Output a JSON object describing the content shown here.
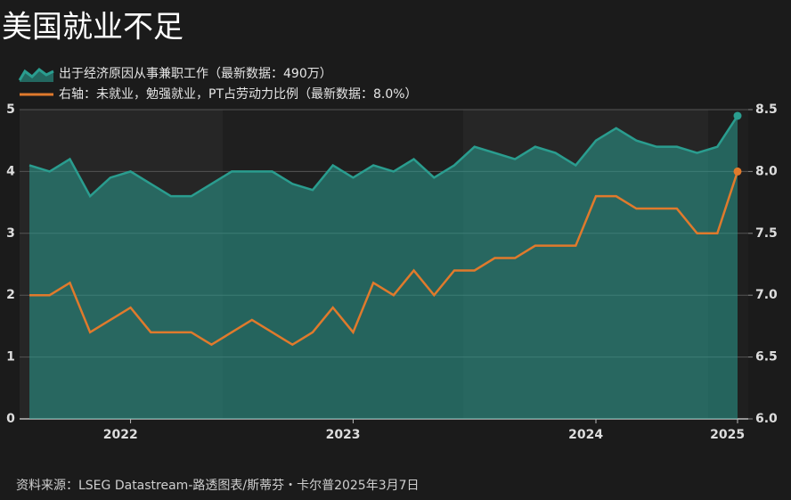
{
  "chart_data": {
    "type": "line",
    "title": "美国就业不足",
    "source": "资料来源：LSEG Datastream-路透图表/斯蒂芬・卡尔普2025年3月7日",
    "categories": [
      null,
      null,
      null,
      null,
      null,
      "2022",
      null,
      null,
      null,
      null,
      null,
      null,
      null,
      null,
      null,
      null,
      "2023",
      null,
      null,
      null,
      null,
      null,
      null,
      null,
      null,
      null,
      null,
      null,
      "2024",
      null,
      null,
      null,
      null,
      null,
      null,
      "2025"
    ],
    "series": [
      {
        "name": "出于经济原因从事兼职工作（最新数据：490万）",
        "color": "#2a9d8f",
        "kind": "area",
        "axis": "y",
        "values": [
          4.1,
          4.0,
          4.2,
          3.6,
          3.9,
          4.0,
          3.8,
          3.6,
          3.6,
          3.8,
          4.0,
          4.0,
          4.0,
          3.8,
          3.7,
          4.1,
          3.9,
          4.1,
          4.0,
          4.2,
          3.9,
          4.1,
          4.4,
          4.3,
          4.2,
          4.4,
          4.3,
          4.1,
          4.5,
          4.7,
          4.5,
          4.4,
          4.4,
          4.3,
          4.4,
          4.9
        ]
      },
      {
        "name": "右轴：未就业，勉强就业，PT占劳动力比例（最新数据：8.0%）",
        "color": "#e07a2c",
        "kind": "line",
        "axis": "y2",
        "values": [
          7.0,
          7.0,
          7.1,
          6.7,
          6.8,
          6.9,
          6.7,
          6.7,
          6.7,
          6.6,
          6.7,
          6.8,
          6.7,
          6.6,
          6.7,
          6.9,
          6.7,
          7.1,
          7.0,
          7.2,
          7.0,
          7.2,
          7.2,
          7.3,
          7.3,
          7.4,
          7.4,
          7.4,
          7.8,
          7.8,
          7.7,
          7.7,
          7.7,
          7.5,
          7.5,
          8.0
        ]
      }
    ],
    "ylim": [
      0,
      5
    ],
    "yticks": [
      0,
      1,
      2,
      3,
      4,
      5
    ],
    "y2lim": [
      6.0,
      8.5
    ],
    "y2ticks": [
      {
        "value": 6.0,
        "label": "6.0"
      },
      {
        "value": 6.5,
        "label": "6.5"
      },
      {
        "value": 7.0,
        "label": "7.0"
      },
      {
        "value": 7.5,
        "label": "7.5"
      },
      {
        "value": 8.0,
        "label": "8.0"
      },
      {
        "value": 8.5,
        "label": "8.5"
      }
    ],
    "grid": true
  }
}
